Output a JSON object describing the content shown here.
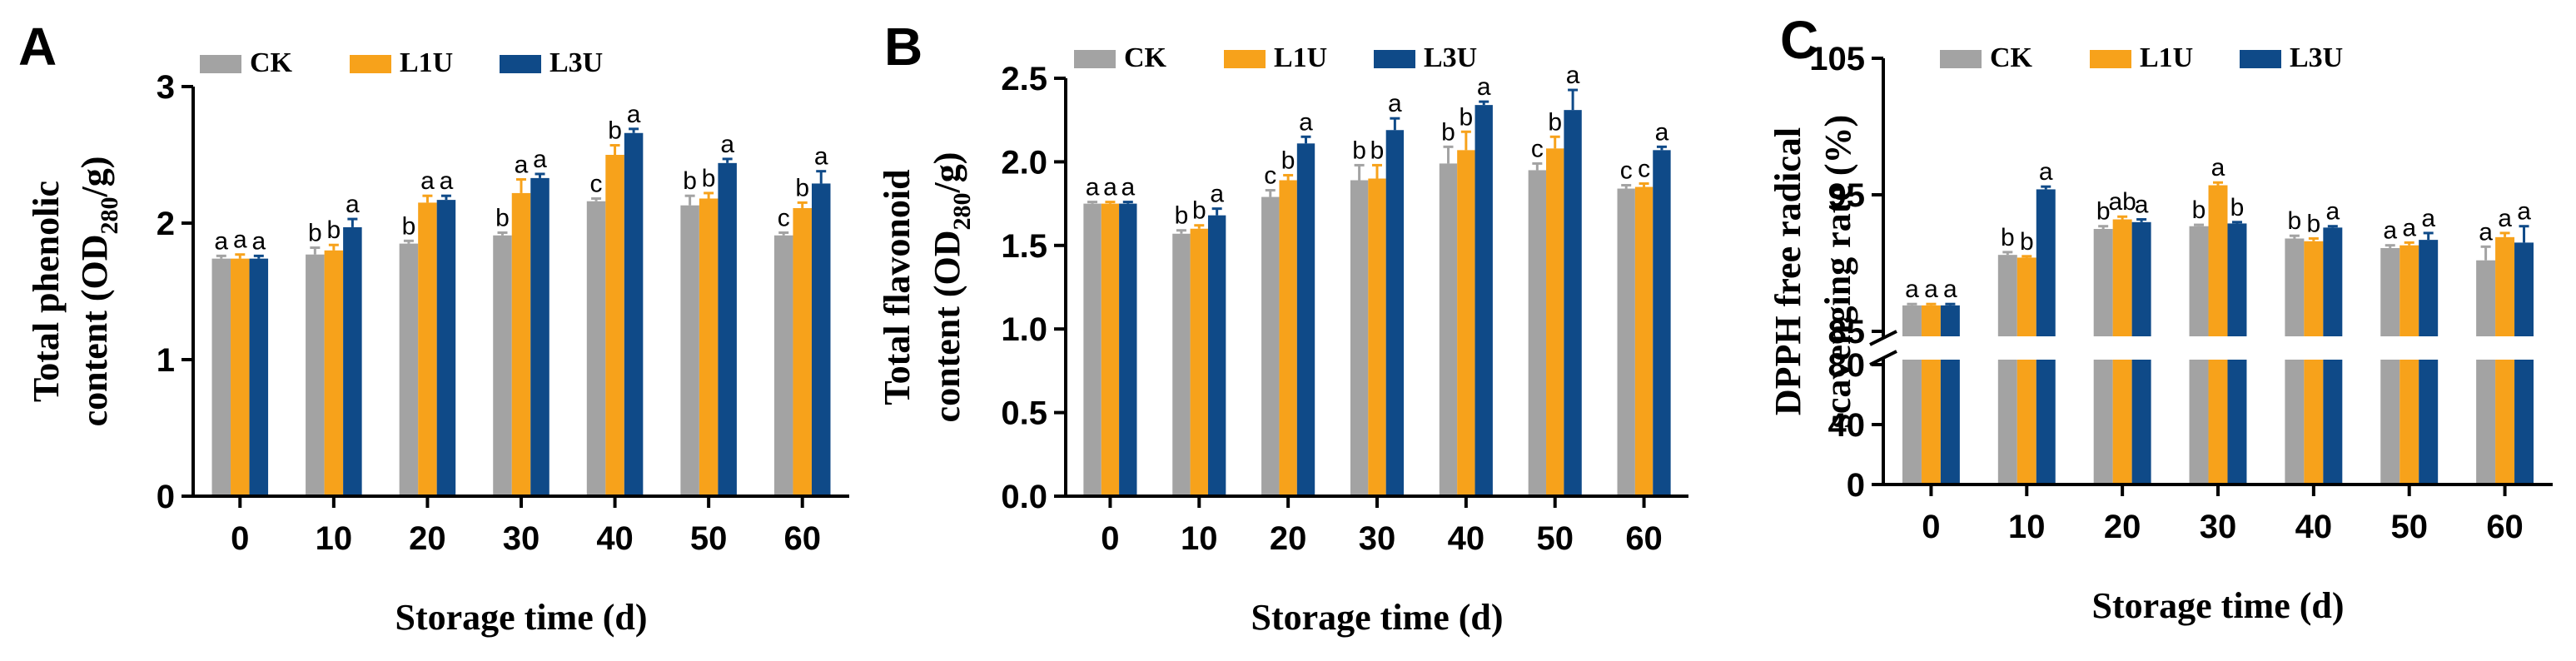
{
  "colors": {
    "CK": "#a3a3a3",
    "L1U": "#f7a21b",
    "L3U": "#0f4a88",
    "axis": "#000000"
  },
  "chart_data": [
    {
      "panel": "A",
      "type": "bar",
      "categories": [
        "0",
        "10",
        "20",
        "30",
        "40",
        "50",
        "60"
      ],
      "series": [
        {
          "name": "CK",
          "values": [
            1.74,
            1.77,
            1.85,
            1.91,
            2.16,
            2.13,
            1.91
          ],
          "errors": [
            0.02,
            0.05,
            0.02,
            0.02,
            0.02,
            0.07,
            0.02
          ],
          "letters": [
            "a",
            "b",
            "b",
            "b",
            "c",
            "b",
            "c"
          ]
        },
        {
          "name": "L1U",
          "values": [
            1.74,
            1.8,
            2.15,
            2.22,
            2.5,
            2.18,
            2.11
          ],
          "errors": [
            0.03,
            0.04,
            0.05,
            0.1,
            0.07,
            0.04,
            0.04
          ],
          "letters": [
            "a",
            "b",
            "a",
            "a",
            "b",
            "b",
            "b"
          ]
        },
        {
          "name": "L3U",
          "values": [
            1.74,
            1.97,
            2.17,
            2.33,
            2.66,
            2.44,
            2.29
          ],
          "errors": [
            0.02,
            0.06,
            0.03,
            0.03,
            0.03,
            0.03,
            0.09
          ],
          "letters": [
            "a",
            "a",
            "a",
            "a",
            "a",
            "a",
            "a"
          ]
        }
      ],
      "ylabel_line1": "Total phenolic",
      "ylabel_line2_prefix": "content (OD",
      "ylabel_sub": "280",
      "ylabel_line2_suffix": "/g)",
      "xlabel": "Storage time (d)",
      "ylim": [
        0,
        3
      ],
      "yticks": [
        "0",
        "1",
        "2",
        "3"
      ],
      "legend": [
        "CK",
        "L1U",
        "L3U"
      ]
    },
    {
      "panel": "B",
      "type": "bar",
      "categories": [
        "0",
        "10",
        "20",
        "30",
        "40",
        "50",
        "60"
      ],
      "series": [
        {
          "name": "CK",
          "values": [
            1.75,
            1.57,
            1.79,
            1.89,
            1.99,
            1.95,
            1.84
          ],
          "errors": [
            0.01,
            0.02,
            0.04,
            0.09,
            0.1,
            0.04,
            0.02
          ],
          "letters": [
            "a",
            "b",
            "c",
            "b",
            "b",
            "c",
            "c"
          ]
        },
        {
          "name": "L1U",
          "values": [
            1.75,
            1.6,
            1.89,
            1.9,
            2.07,
            2.08,
            1.85
          ],
          "errors": [
            0.01,
            0.02,
            0.03,
            0.08,
            0.11,
            0.07,
            0.02
          ],
          "letters": [
            "a",
            "b",
            "b",
            "b",
            "b",
            "b",
            "c"
          ]
        },
        {
          "name": "L3U",
          "values": [
            1.75,
            1.68,
            2.11,
            2.19,
            2.34,
            2.31,
            2.07
          ],
          "errors": [
            0.01,
            0.04,
            0.04,
            0.07,
            0.02,
            0.12,
            0.02
          ],
          "letters": [
            "a",
            "a",
            "a",
            "a",
            "a",
            "a",
            "a"
          ]
        }
      ],
      "ylabel_line1": "Total flavonoid",
      "ylabel_line2_prefix": "content (OD",
      "ylabel_sub": "280",
      "ylabel_line2_suffix": "/g)",
      "xlabel": "Storage time (d)",
      "ylim": [
        0,
        2.5
      ],
      "yticks": [
        "0.0",
        "0.5",
        "1.0",
        "1.5",
        "2.0",
        "2.5"
      ],
      "legend": [
        "CK",
        "L1U",
        "L3U"
      ]
    },
    {
      "panel": "C",
      "type": "bar",
      "categories": [
        "0",
        "10",
        "20",
        "30",
        "40",
        "50",
        "60"
      ],
      "series": [
        {
          "name": "CK",
          "values": [
            86.9,
            90.6,
            92.5,
            92.7,
            91.8,
            91.1,
            90.2
          ],
          "errors": [
            0.1,
            0.2,
            0.2,
            0.1,
            0.2,
            0.2,
            1.0
          ],
          "letters": [
            "a",
            "b",
            "b",
            "b",
            "b",
            "a",
            "a"
          ]
        },
        {
          "name": "L1U",
          "values": [
            86.9,
            90.4,
            93.2,
            95.7,
            91.6,
            91.3,
            91.9
          ],
          "errors": [
            0.1,
            0.1,
            0.2,
            0.2,
            0.2,
            0.2,
            0.3
          ],
          "letters": [
            "a",
            "b",
            "ab",
            "a",
            "b",
            "a",
            "a"
          ]
        },
        {
          "name": "L3U",
          "values": [
            86.9,
            95.4,
            93.0,
            92.9,
            92.6,
            91.7,
            91.5
          ],
          "errors": [
            0.1,
            0.2,
            0.2,
            0.1,
            0.1,
            0.5,
            1.2
          ],
          "letters": [
            "a",
            "a",
            "a",
            "b",
            "a",
            "a",
            "a"
          ]
        }
      ],
      "ylabel_line1": "DPPH free radical",
      "ylabel_line2": "scavenging rate (%)",
      "xlabel": "Storage time (d)",
      "ylim": [
        0,
        105
      ],
      "axis_break": [
        80,
        85
      ],
      "yticks": [
        "0",
        "40",
        "80",
        "85",
        "95",
        "105"
      ],
      "legend": [
        "CK",
        "L1U",
        "L3U"
      ]
    }
  ]
}
